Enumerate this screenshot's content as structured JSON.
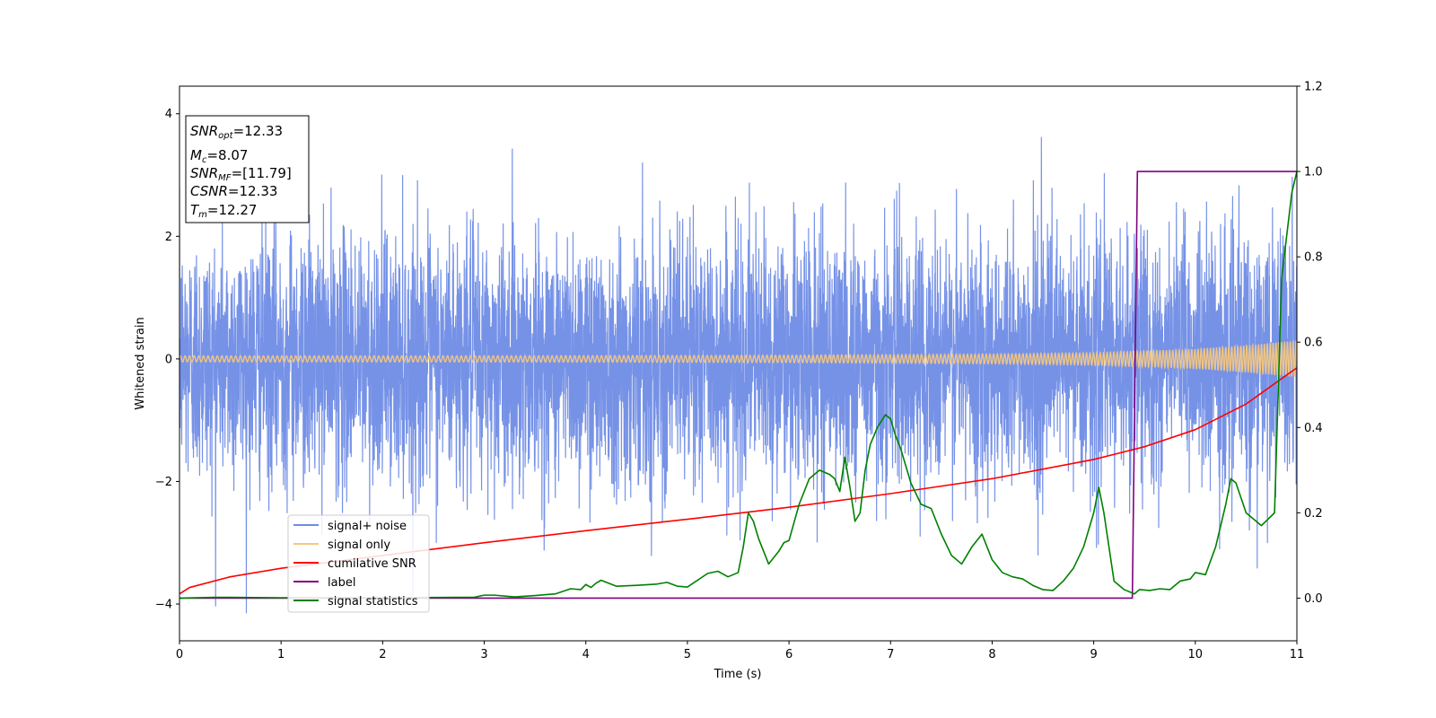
{
  "chart_data": {
    "type": "line",
    "xlabel": "Time (s)",
    "ylabel": "Whitened strain",
    "xlim": [
      0,
      11
    ],
    "ylim": [
      -4.6,
      4.45
    ],
    "y2lim": [
      -0.1,
      1.2
    ],
    "x_ticks": [
      "0",
      "1",
      "2",
      "3",
      "4",
      "5",
      "6",
      "7",
      "8",
      "9",
      "10",
      "11"
    ],
    "y_ticks": [
      "−4",
      "−2",
      "0",
      "2",
      "4"
    ],
    "y2_ticks": [
      "0.0",
      "0.2",
      "0.4",
      "0.6",
      "0.8",
      "1.0",
      "1.2"
    ],
    "grid": false,
    "legend_position": "lower-left",
    "stats_box": {
      "snr_opt": {
        "symbol": "SNR",
        "sub": "opt",
        "value": "=12.33"
      },
      "mc": {
        "symbol": "M",
        "sub": "c",
        "value": "=8.07"
      },
      "snr_mf": {
        "symbol": "SNR",
        "sub": "MF",
        "value": "=[11.79]"
      },
      "csnr": {
        "symbol": "CSNR",
        "sub": "",
        "value": "=12.33"
      },
      "tm": {
        "symbol": "T",
        "sub": "m",
        "value": "=12.27"
      }
    },
    "series": [
      {
        "name": "signal+ noise",
        "axis": "left",
        "color": "#6f8ce6",
        "noise_std": 1.0,
        "peak_range": [
          -4.15,
          4.05
        ]
      },
      {
        "name": "signal only",
        "axis": "left",
        "color": "#f5c77e",
        "amplitude": {
          "x": [
            0,
            3,
            6,
            8,
            9,
            10,
            10.5,
            11
          ],
          "y": [
            0.05,
            0.05,
            0.06,
            0.08,
            0.1,
            0.16,
            0.22,
            0.3
          ]
        }
      },
      {
        "name": "cumilative SNR",
        "axis": "right",
        "color": "#ff0000",
        "x": [
          0,
          0.1,
          0.5,
          1,
          2,
          3,
          4,
          5,
          6,
          7,
          8,
          9,
          9.5,
          10,
          10.5,
          11
        ],
        "y": [
          0.01,
          0.025,
          0.05,
          0.07,
          0.1,
          0.13,
          0.158,
          0.185,
          0.213,
          0.245,
          0.28,
          0.325,
          0.355,
          0.395,
          0.455,
          0.54
        ]
      },
      {
        "name": "label",
        "axis": "right",
        "color": "#800080",
        "x": [
          0,
          9.38,
          9.43,
          11
        ],
        "y": [
          0,
          0,
          1,
          1
        ]
      },
      {
        "name": "signal statistics",
        "axis": "right",
        "color": "#008000",
        "x": [
          0,
          0.35,
          1,
          2,
          2.9,
          3.0,
          3.1,
          3.3,
          3.5,
          3.7,
          3.85,
          3.95,
          4.0,
          4.05,
          4.1,
          4.15,
          4.3,
          4.5,
          4.7,
          4.8,
          4.9,
          5.0,
          5.2,
          5.3,
          5.4,
          5.5,
          5.55,
          5.6,
          5.65,
          5.7,
          5.8,
          5.85,
          5.9,
          5.95,
          6.0,
          6.1,
          6.2,
          6.3,
          6.4,
          6.45,
          6.5,
          6.55,
          6.6,
          6.65,
          6.7,
          6.75,
          6.8,
          6.87,
          6.95,
          7.0,
          7.05,
          7.1,
          7.2,
          7.3,
          7.4,
          7.5,
          7.6,
          7.7,
          7.8,
          7.9,
          8.0,
          8.1,
          8.2,
          8.3,
          8.4,
          8.5,
          8.6,
          8.7,
          8.8,
          8.9,
          9.0,
          9.05,
          9.1,
          9.15,
          9.2,
          9.3,
          9.4,
          9.45,
          9.55,
          9.65,
          9.75,
          9.85,
          9.95,
          10.0,
          10.1,
          10.2,
          10.3,
          10.35,
          10.4,
          10.5,
          10.65,
          10.78,
          10.85,
          10.95,
          11.0
        ],
        "y": [
          0,
          0.002,
          0.001,
          0.001,
          0.002,
          0.007,
          0.007,
          0.003,
          0.006,
          0.01,
          0.022,
          0.02,
          0.032,
          0.025,
          0.035,
          0.042,
          0.028,
          0.03,
          0.033,
          0.037,
          0.028,
          0.026,
          0.058,
          0.063,
          0.05,
          0.06,
          0.12,
          0.2,
          0.18,
          0.14,
          0.08,
          0.095,
          0.11,
          0.13,
          0.135,
          0.22,
          0.28,
          0.3,
          0.29,
          0.28,
          0.25,
          0.33,
          0.26,
          0.18,
          0.2,
          0.3,
          0.36,
          0.4,
          0.43,
          0.42,
          0.38,
          0.35,
          0.27,
          0.22,
          0.21,
          0.15,
          0.1,
          0.08,
          0.12,
          0.15,
          0.09,
          0.06,
          0.05,
          0.045,
          0.03,
          0.02,
          0.018,
          0.04,
          0.07,
          0.12,
          0.2,
          0.26,
          0.2,
          0.12,
          0.04,
          0.02,
          0.01,
          0.02,
          0.018,
          0.022,
          0.02,
          0.04,
          0.045,
          0.06,
          0.055,
          0.12,
          0.22,
          0.28,
          0.27,
          0.2,
          0.17,
          0.2,
          0.75,
          0.95,
          1.0
        ]
      }
    ]
  }
}
